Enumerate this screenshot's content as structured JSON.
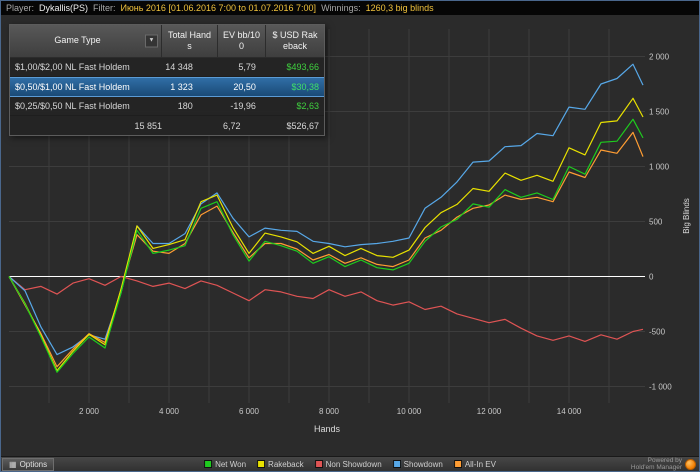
{
  "top_bar": {
    "player_label": "Player:",
    "player_value": "Dykallis(PS)",
    "filter_label": "Filter:",
    "filter_value": "Июнь 2016 [01.06.2016 7:00 to 01.07.2016 7:00]",
    "winnings_label": "Winnings:",
    "winnings_value": "1260,3 big blinds"
  },
  "stats_table": {
    "columns": [
      "Game Type",
      "Total Hands",
      "EV bb/100",
      "$ USD Rakeback"
    ],
    "rows": [
      {
        "game_type": "$1,00/$2,00 NL Fast Holdem",
        "total_hands": "14 348",
        "ev": "5,79",
        "rakeback": "$493,66",
        "selected": false
      },
      {
        "game_type": "$0,50/$1,00 NL Fast Holdem",
        "total_hands": "1 323",
        "ev": "20,50",
        "rakeback": "$30,38",
        "selected": true
      },
      {
        "game_type": "$0,25/$0,50 NL Fast Holdem",
        "total_hands": "180",
        "ev": "-19,96",
        "rakeback": "$2,63",
        "selected": false
      }
    ],
    "total_row": {
      "game_type": "",
      "total_hands": "15 851",
      "ev": "6,72",
      "rakeback": "$526,67"
    }
  },
  "bottom_bar": {
    "options_label": "Options",
    "powered_by_line1": "Powered by",
    "powered_by_line2": "Hold'em Manager"
  },
  "colors": {
    "money_green": "#3fd03f",
    "selected_row_blue": "#2e6da4",
    "brand_orange": "#f07c00",
    "zero_line": "#ffffff",
    "grid": "#3d3d3d",
    "chart_bg": "#2b2b2b"
  },
  "chart_data": {
    "type": "line",
    "title": "",
    "xlabel": "Hands",
    "ylabel": "Big Blinds",
    "xlim": [
      0,
      15900
    ],
    "ylim": [
      -1150,
      2250
    ],
    "grid": true,
    "legend_position": "bottom",
    "x_ticks": [
      {
        "value": 2000,
        "label": "2 000"
      },
      {
        "value": 4000,
        "label": "4 000"
      },
      {
        "value": 6000,
        "label": "6 000"
      },
      {
        "value": 8000,
        "label": "8 000"
      },
      {
        "value": 10000,
        "label": "10 000"
      },
      {
        "value": 12000,
        "label": "12 000"
      },
      {
        "value": 14000,
        "label": "14 000"
      }
    ],
    "y_ticks": [
      {
        "value": 2000,
        "label": "2 000"
      },
      {
        "value": 1500,
        "label": "1 500"
      },
      {
        "value": 1000,
        "label": "1 000"
      },
      {
        "value": 500,
        "label": "500"
      },
      {
        "value": 0,
        "label": "0"
      },
      {
        "value": -500,
        "label": "-500"
      },
      {
        "value": -1000,
        "label": "-1 000"
      }
    ],
    "x": [
      0,
      400,
      800,
      1200,
      1600,
      2000,
      2400,
      2800,
      3200,
      3600,
      4000,
      4400,
      4800,
      5200,
      5600,
      6000,
      6400,
      6800,
      7200,
      7600,
      8000,
      8400,
      8800,
      9200,
      9600,
      10000,
      10400,
      10800,
      11200,
      11600,
      12000,
      12400,
      12800,
      13200,
      13600,
      14000,
      14400,
      14800,
      15200,
      15600,
      15851
    ],
    "series": [
      {
        "name": "Net Won",
        "color": "#1ecb1e",
        "values": [
          0,
          -250,
          -550,
          -870,
          -700,
          -550,
          -650,
          -150,
          420,
          210,
          240,
          280,
          620,
          680,
          380,
          140,
          320,
          280,
          230,
          120,
          180,
          90,
          150,
          80,
          60,
          120,
          320,
          450,
          520,
          660,
          630,
          790,
          720,
          760,
          700,
          1000,
          930,
          1220,
          1230,
          1430,
          1260
        ]
      },
      {
        "name": "Rakeback",
        "color": "#e8e100",
        "values": [
          0,
          -245,
          -540,
          -855,
          -680,
          -525,
          -620,
          -115,
          460,
          255,
          290,
          335,
          680,
          740,
          445,
          210,
          395,
          360,
          315,
          210,
          275,
          190,
          255,
          190,
          175,
          240,
          445,
          580,
          655,
          800,
          775,
          940,
          875,
          920,
          865,
          1170,
          1105,
          1400,
          1415,
          1620,
          1450
        ]
      },
      {
        "name": "Non Showdown",
        "color": "#df5454",
        "values": [
          0,
          -120,
          -90,
          -160,
          -60,
          -20,
          -80,
          0,
          -40,
          -90,
          -60,
          -110,
          -40,
          -80,
          -150,
          -220,
          -120,
          -140,
          -180,
          -200,
          -120,
          -180,
          -140,
          -220,
          -260,
          -230,
          -300,
          -270,
          -340,
          -380,
          -420,
          -390,
          -470,
          -540,
          -580,
          -540,
          -590,
          -530,
          -570,
          -500,
          -480
        ]
      },
      {
        "name": "Showdown",
        "color": "#57a8e8",
        "values": [
          0,
          -130,
          -460,
          -710,
          -640,
          -530,
          -570,
          -150,
          460,
          300,
          300,
          390,
          660,
          760,
          530,
          360,
          440,
          420,
          410,
          320,
          300,
          270,
          290,
          300,
          320,
          350,
          620,
          720,
          860,
          1040,
          1050,
          1180,
          1190,
          1300,
          1280,
          1540,
          1520,
          1750,
          1800,
          1930,
          1740
        ]
      },
      {
        "name": "All-In EV",
        "color": "#ff9d33",
        "values": [
          0,
          -260,
          -520,
          -820,
          -660,
          -520,
          -600,
          -120,
          380,
          230,
          210,
          300,
          560,
          640,
          400,
          170,
          300,
          300,
          250,
          150,
          200,
          120,
          170,
          110,
          90,
          150,
          350,
          420,
          540,
          620,
          650,
          740,
          700,
          720,
          680,
          950,
          900,
          1150,
          1120,
          1310,
          1090
        ]
      }
    ]
  }
}
